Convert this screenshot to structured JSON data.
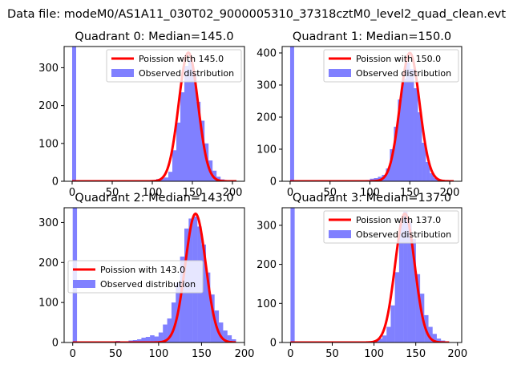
{
  "figure_title": "Data file: modeM0/AS1A11_030T02_9000005310_37318cztM0_level2_quad_clean.evt",
  "colors": {
    "fit": "#ff0000",
    "observed": "#8080ff",
    "axis": "#000000"
  },
  "chart_data": [
    {
      "type": "bar",
      "title": "Quadrant 0: Median=145.0",
      "xlim": [
        -10,
        215
      ],
      "ylim": [
        0,
        356
      ],
      "xticks": [
        0,
        50,
        100,
        150,
        200
      ],
      "yticks": [
        0,
        100,
        200,
        300
      ],
      "legend": {
        "placement": "upper right",
        "fit_label": "Poission with 145.0",
        "observed_label": "Observed distribution"
      },
      "histogram": {
        "bin_width": 5,
        "zero_bin_value": 356,
        "bins": [
          [
            90,
            1
          ],
          [
            95,
            2
          ],
          [
            100,
            3
          ],
          [
            105,
            6
          ],
          [
            110,
            8
          ],
          [
            115,
            10
          ],
          [
            120,
            25
          ],
          [
            125,
            82
          ],
          [
            130,
            155
          ],
          [
            135,
            235
          ],
          [
            140,
            305
          ],
          [
            145,
            320
          ],
          [
            150,
            285
          ],
          [
            155,
            210
          ],
          [
            160,
            160
          ],
          [
            165,
            100
          ],
          [
            170,
            55
          ],
          [
            175,
            28
          ],
          [
            180,
            12
          ],
          [
            185,
            5
          ],
          [
            190,
            2
          ]
        ]
      },
      "poisson_mean": 145.0,
      "poisson_peak": 340,
      "fit_range": [
        0,
        205
      ]
    },
    {
      "type": "bar",
      "title": "Quadrant 1: Median=150.0",
      "xlim": [
        -10,
        215
      ],
      "ylim": [
        0,
        420
      ],
      "xticks": [
        0,
        50,
        100,
        150,
        200
      ],
      "yticks": [
        0,
        100,
        200,
        300,
        400
      ],
      "legend": {
        "placement": "upper right",
        "fit_label": "Poission with 150.0",
        "observed_label": "Observed distribution"
      },
      "histogram": {
        "bin_width": 5,
        "zero_bin_value": 420,
        "bins": [
          [
            90,
            2
          ],
          [
            95,
            4
          ],
          [
            100,
            8
          ],
          [
            105,
            10
          ],
          [
            110,
            14
          ],
          [
            115,
            20
          ],
          [
            120,
            40
          ],
          [
            125,
            100
          ],
          [
            130,
            170
          ],
          [
            135,
            255
          ],
          [
            140,
            320
          ],
          [
            145,
            370
          ],
          [
            150,
            350
          ],
          [
            155,
            290
          ],
          [
            160,
            215
          ],
          [
            165,
            120
          ],
          [
            170,
            60
          ],
          [
            175,
            25
          ],
          [
            180,
            10
          ],
          [
            185,
            4
          ],
          [
            190,
            2
          ]
        ]
      },
      "poisson_mean": 150.0,
      "poisson_peak": 400,
      "fit_range": [
        0,
        205
      ]
    },
    {
      "type": "bar",
      "title": "Quadrant 2: Median=143.0",
      "xlim": [
        -10,
        200
      ],
      "ylim": [
        0,
        337
      ],
      "xticks": [
        0,
        50,
        100,
        150,
        200
      ],
      "yticks": [
        0,
        100,
        200,
        300
      ],
      "legend": {
        "placement": "center left",
        "fit_label": "Poission with 143.0",
        "observed_label": "Observed distribution"
      },
      "histogram": {
        "bin_width": 5,
        "zero_bin_value": 337,
        "bins": [
          [
            50,
            4
          ],
          [
            55,
            2
          ],
          [
            60,
            3
          ],
          [
            65,
            5
          ],
          [
            70,
            6
          ],
          [
            75,
            8
          ],
          [
            80,
            12
          ],
          [
            85,
            14
          ],
          [
            90,
            18
          ],
          [
            95,
            15
          ],
          [
            100,
            25
          ],
          [
            105,
            45
          ],
          [
            110,
            60
          ],
          [
            115,
            100
          ],
          [
            120,
            150
          ],
          [
            125,
            215
          ],
          [
            130,
            285
          ],
          [
            135,
            310
          ],
          [
            140,
            315
          ],
          [
            145,
            290
          ],
          [
            150,
            245
          ],
          [
            155,
            175
          ],
          [
            160,
            120
          ],
          [
            165,
            80
          ],
          [
            170,
            50
          ],
          [
            175,
            30
          ],
          [
            180,
            18
          ],
          [
            185,
            8
          ]
        ]
      },
      "poisson_mean": 143.0,
      "poisson_peak": 322,
      "fit_range": [
        0,
        190
      ]
    },
    {
      "type": "bar",
      "title": "Quadrant 3: Median=137.0",
      "xlim": [
        -10,
        205
      ],
      "ylim": [
        0,
        345
      ],
      "xticks": [
        0,
        50,
        100,
        150,
        200
      ],
      "yticks": [
        0,
        100,
        200,
        300
      ],
      "legend": {
        "placement": "upper right",
        "fit_label": "Poission with 137.0",
        "observed_label": "Observed distribution"
      },
      "histogram": {
        "bin_width": 5,
        "zero_bin_value": 345,
        "bins": [
          [
            95,
            3
          ],
          [
            100,
            6
          ],
          [
            105,
            10
          ],
          [
            110,
            18
          ],
          [
            115,
            40
          ],
          [
            120,
            95
          ],
          [
            125,
            180
          ],
          [
            130,
            305
          ],
          [
            135,
            335
          ],
          [
            140,
            310
          ],
          [
            145,
            265
          ],
          [
            150,
            175
          ],
          [
            155,
            125
          ],
          [
            160,
            70
          ],
          [
            165,
            40
          ],
          [
            170,
            22
          ],
          [
            175,
            10
          ],
          [
            180,
            5
          ]
        ]
      },
      "poisson_mean": 137.0,
      "poisson_peak": 330,
      "fit_range": [
        0,
        190
      ]
    }
  ]
}
